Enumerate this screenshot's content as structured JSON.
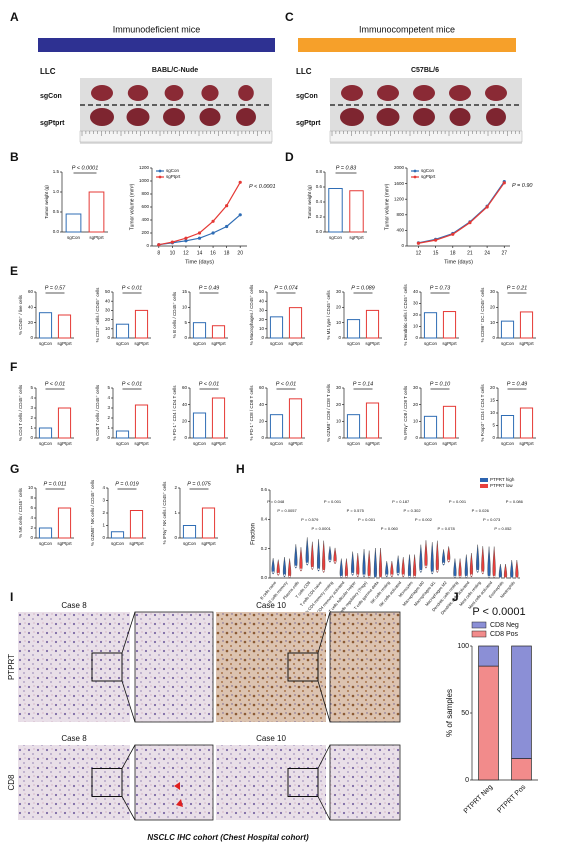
{
  "group_colors": [
    "#2f6db5",
    "#e53935"
  ],
  "figure": {
    "A": {
      "label": "A",
      "header": "Immunodeficient mice",
      "cell_line": "LLC",
      "strain": "BABL/C-Nude",
      "rows": [
        "sgCon",
        "sgPtprt"
      ]
    },
    "C": {
      "label": "C",
      "header": "Immunocompetent mice",
      "cell_line": "LLC",
      "strain": "C57BL/6",
      "rows": [
        "sgCon",
        "sgPtprt"
      ]
    },
    "B": {
      "label": "B",
      "weight": {
        "type": "bar",
        "ylabel": "Tumor weight (g)",
        "annotation": "P < 0.0001",
        "categories": [
          "sgCon",
          "sgPtprt"
        ],
        "values": [
          0.45,
          1.0
        ],
        "ylim": [
          0,
          1.5
        ],
        "yticks": [
          {
            "value": 0,
            "label": "0.0"
          },
          0.5,
          {
            "value": 1,
            "label": "1.0"
          },
          1.5
        ]
      },
      "volume": {
        "type": "line",
        "xlabel": "Time (days)",
        "ylabel": "Tumor volume (mm³)",
        "annotation": "P < 0.0001",
        "x": [
          8,
          10,
          12,
          14,
          16,
          18,
          20
        ],
        "xlim": [
          7,
          21
        ],
        "xticks": [
          8,
          10,
          12,
          14,
          16,
          18,
          20
        ],
        "ylim": [
          0,
          1200
        ],
        "yticks": [
          0,
          200,
          400,
          600,
          800,
          1000,
          1200
        ],
        "series": [
          {
            "name": "sgCon",
            "color": "#2f6db5",
            "values": [
              20,
              50,
              80,
              120,
              200,
              300,
              480
            ]
          },
          {
            "name": "sgPtprt",
            "color": "#e53935",
            "values": [
              20,
              60,
              120,
              200,
              380,
              620,
              980
            ]
          }
        ]
      }
    },
    "D": {
      "label": "D",
      "weight": {
        "type": "bar",
        "ylabel": "Tumor weight (g)",
        "annotation": "P = 0.83",
        "categories": [
          "sgCon",
          "sgPtprt"
        ],
        "values": [
          0.58,
          0.55
        ],
        "ylim": [
          0,
          0.8
        ],
        "yticks": [
          {
            "value": 0,
            "label": "0.0"
          },
          0.2,
          0.4,
          0.6,
          0.8
        ]
      },
      "volume": {
        "type": "line",
        "xlabel": "Time (days)",
        "ylabel": "Tumor volume (mm³)",
        "annotation": "P = 0.90",
        "x": [
          12,
          15,
          18,
          21,
          24,
          27
        ],
        "xlim": [
          10,
          28
        ],
        "xticks": [
          12,
          15,
          18,
          21,
          24,
          27
        ],
        "ylim": [
          0,
          2000
        ],
        "yticks": [
          0,
          400,
          800,
          1200,
          1600,
          2000
        ],
        "series": [
          {
            "name": "sgCon",
            "color": "#2f6db5",
            "values": [
              80,
              170,
              320,
              620,
              1020,
              1650
            ]
          },
          {
            "name": "sgPtprt",
            "color": "#e53935",
            "values": [
              70,
              150,
              300,
              600,
              1000,
              1620
            ]
          }
        ]
      }
    },
    "E": {
      "label": "E",
      "charts": [
        {
          "type": "bar",
          "ylabel": "% CD45⁺ / live cells",
          "annotation": "P = 0.57",
          "categories": [
            "sgCon",
            "sgPtprt"
          ],
          "values": [
            33,
            30
          ],
          "ylim": [
            0,
            60
          ],
          "yticks": [
            0,
            20,
            40,
            60
          ]
        },
        {
          "type": "bar",
          "ylabel": "% CD3⁺ cells / CD45⁺ cells",
          "annotation": "P < 0.01",
          "categories": [
            "sgCon",
            "sgPtprt"
          ],
          "values": [
            15,
            30
          ],
          "ylim": [
            0,
            50
          ],
          "yticks": [
            0,
            10,
            20,
            30,
            40,
            50
          ]
        },
        {
          "type": "bar",
          "ylabel": "% B cells / CD45⁺ cells",
          "annotation": "P = 0.49",
          "categories": [
            "sgCon",
            "sgPtprt"
          ],
          "values": [
            5,
            4
          ],
          "ylim": [
            0,
            15
          ],
          "yticks": [
            0,
            5,
            10,
            15
          ]
        },
        {
          "type": "bar",
          "ylabel": "% Macrophages / CD45⁺ cells",
          "annotation": "P = 0.074",
          "categories": [
            "sgCon",
            "sgPtprt"
          ],
          "values": [
            23,
            33
          ],
          "ylim": [
            0,
            50
          ],
          "yticks": [
            0,
            10,
            20,
            30,
            40,
            50
          ]
        },
        {
          "type": "bar",
          "ylabel": "% M1 type / CD45⁺ cells",
          "annotation": "P = 0.089",
          "categories": [
            "sgCon",
            "sgPtprt"
          ],
          "values": [
            12,
            18
          ],
          "ylim": [
            0,
            30
          ],
          "yticks": [
            0,
            10,
            20,
            30
          ]
        },
        {
          "type": "bar",
          "ylabel": "% Dendritic cells / CD45⁺ cells",
          "annotation": "P = 0.73",
          "categories": [
            "sgCon",
            "sgPtprt"
          ],
          "values": [
            22,
            23
          ],
          "ylim": [
            0,
            40
          ],
          "yticks": [
            0,
            10,
            20,
            30,
            40
          ]
        },
        {
          "type": "bar",
          "ylabel": "% CD86⁺ DC / CD45⁺ cells",
          "annotation": "P = 0.21",
          "categories": [
            "sgCon",
            "sgPtprt"
          ],
          "values": [
            11,
            17
          ],
          "ylim": [
            0,
            30
          ],
          "yticks": [
            0,
            10,
            20,
            30
          ]
        }
      ]
    },
    "F": {
      "label": "F",
      "charts": [
        {
          "type": "bar",
          "ylabel": "% CD4 T cells / CD45⁺ cells",
          "annotation": "P < 0.01",
          "categories": [
            "sgCon",
            "sgPtprt"
          ],
          "values": [
            1,
            3
          ],
          "ylim": [
            0,
            5
          ],
          "yticks": [
            0,
            1,
            2,
            3,
            4,
            5
          ]
        },
        {
          "type": "bar",
          "ylabel": "% CD8 T cells / CD45⁺ cells",
          "annotation": "P < 0.01",
          "categories": [
            "sgCon",
            "sgPtprt"
          ],
          "values": [
            0.7,
            3.3
          ],
          "ylim": [
            0,
            5
          ],
          "yticks": [
            0,
            1,
            2,
            3,
            4,
            5
          ]
        },
        {
          "type": "bar",
          "ylabel": "% PD-1⁺ CD4 / CD4 T cells",
          "annotation": "P < 0.01",
          "categories": [
            "sgCon",
            "sgPtprt"
          ],
          "values": [
            30,
            48
          ],
          "ylim": [
            0,
            60
          ],
          "yticks": [
            0,
            20,
            40,
            60
          ]
        },
        {
          "type": "bar",
          "ylabel": "% PD-1⁺ CD8 / CD8 T cells",
          "annotation": "P < 0.01",
          "categories": [
            "sgCon",
            "sgPtprt"
          ],
          "values": [
            28,
            47
          ],
          "ylim": [
            0,
            60
          ],
          "yticks": [
            0,
            20,
            40,
            60
          ]
        },
        {
          "type": "bar",
          "ylabel": "% GZMB⁺ CD8 / CD8 T cells",
          "annotation": "P = 0.14",
          "categories": [
            "sgCon",
            "sgPtprt"
          ],
          "values": [
            14,
            21
          ],
          "ylim": [
            0,
            30
          ],
          "yticks": [
            0,
            10,
            20,
            30
          ]
        },
        {
          "type": "bar",
          "ylabel": "% IFNγ⁺ CD8 / CD8 T cells",
          "annotation": "P = 0.10",
          "categories": [
            "sgCon",
            "sgPtprt"
          ],
          "values": [
            13,
            19
          ],
          "ylim": [
            0,
            30
          ],
          "yticks": [
            0,
            10,
            20,
            30
          ]
        },
        {
          "type": "bar",
          "ylabel": "% Foxp3⁺ CD4 / CD4 T cells",
          "annotation": "P = 0.49",
          "categories": [
            "sgCon",
            "sgPtprt"
          ],
          "values": [
            9,
            12
          ],
          "ylim": [
            0,
            20
          ],
          "yticks": [
            0,
            5,
            10,
            15,
            20
          ]
        }
      ]
    },
    "G": {
      "label": "G",
      "charts": [
        {
          "type": "bar",
          "ylabel": "% NK cells / CD45⁺ cells",
          "annotation": "P = 0.011",
          "categories": [
            "sgCon",
            "sgPtprt"
          ],
          "values": [
            2,
            6
          ],
          "ylim": [
            0,
            10
          ],
          "yticks": [
            0,
            2,
            4,
            6,
            8,
            10
          ]
        },
        {
          "type": "bar",
          "ylabel": "% GZMB⁺ NK cells / CD45⁺ cells",
          "annotation": "P = 0.019",
          "categories": [
            "sgCon",
            "sgPtprt"
          ],
          "values": [
            0.5,
            2.2
          ],
          "ylim": [
            0,
            4
          ],
          "yticks": [
            0,
            1,
            2,
            3,
            4
          ]
        },
        {
          "type": "bar",
          "ylabel": "% IFNγ⁺ NK cells / CD45⁺ cells",
          "annotation": "P = 0.075",
          "categories": [
            "sgCon",
            "sgPtprt"
          ],
          "values": [
            0.5,
            1.2
          ],
          "ylim": [
            0,
            2
          ],
          "yticks": [
            0,
            1,
            2
          ]
        }
      ]
    },
    "H": {
      "label": "H",
      "chart": {
        "type": "violin",
        "ylabel": "Fraction",
        "categories": [
          "B cells naive",
          "B cells memory",
          "Plasma cells",
          "T cells CD8",
          "T cells CD4 naive",
          "T cells CD4 memory resting",
          "T cells CD4 memory activated",
          "T cells follicular helper",
          "T cells regulatory (Tregs)",
          "T cells gamma delta",
          "NK cells resting",
          "NK cells activated",
          "Monocytes",
          "Macrophages M0",
          "Macrophages M1",
          "Macrophages M2",
          "Dendritic cells resting",
          "Dendritic cells activated",
          "Mast cells resting",
          "Mast cells activated",
          "Eosinophils",
          "Neutrophils"
        ],
        "ylim": [
          0,
          0.6
        ],
        "yticks": [
          {
            "value": 0,
            "label": "0.0"
          },
          0.2,
          0.4,
          0.6
        ],
        "series": [
          {
            "name": "PTPRT high",
            "color": "#2c64b0",
            "values": [
              0.04,
              0.02,
              0.08,
              0.1,
              0.06,
              0.12,
              0.01,
              0.03,
              0.02,
              0.0,
              0.02,
              0.03,
              0.01,
              0.05,
              0.04,
              0.1,
              0.01,
              0.01,
              0.05,
              0.01,
              0.0,
              0.0
            ]
          },
          {
            "name": "PTPRT low",
            "color": "#e8403d",
            "values": [
              0.03,
              0.01,
              0.06,
              0.07,
              0.05,
              0.11,
              0.01,
              0.02,
              0.01,
              0.0,
              0.02,
              0.02,
              0.01,
              0.08,
              0.05,
              0.12,
              0.01,
              0.02,
              0.04,
              0.01,
              0.0,
              0.0
            ]
          }
        ],
        "annotations": [
          {
            "category": 0,
            "text": "P = 0.048"
          },
          {
            "category": 1,
            "text": "P = 0.0057"
          },
          {
            "category": 3,
            "text": "P = 0.579"
          },
          {
            "category": 4,
            "text": "P = 0.0001"
          },
          {
            "category": 5,
            "text": "P = 0.001"
          },
          {
            "category": 7,
            "text": "P = 0.575"
          },
          {
            "category": 8,
            "text": "P = 0.001"
          },
          {
            "category": 10,
            "text": "P = 0.060"
          },
          {
            "category": 11,
            "text": "P = 0.187"
          },
          {
            "category": 12,
            "text": "P = 0.302"
          },
          {
            "category": 13,
            "text": "P = 0.002"
          },
          {
            "category": 15,
            "text": "P = 0.078"
          },
          {
            "category": 16,
            "text": "P = 0.001"
          },
          {
            "category": 18,
            "text": "P = 0.026"
          },
          {
            "category": 19,
            "text": "P = 0.073"
          },
          {
            "category": 20,
            "text": "P = 0.052"
          },
          {
            "category": 21,
            "text": "P = 0.086"
          }
        ]
      }
    },
    "I": {
      "label": "I",
      "columns": [
        "Case  8",
        "Case  10"
      ],
      "rows": [
        "PTPRT",
        "CD8"
      ],
      "caption": "NSCLC IHC cohort (Chest Hospital cohort)"
    },
    "J": {
      "label": "J",
      "chart": {
        "type": "stacked_bar",
        "title": "P < 0.0001",
        "ylabel": "% of samples",
        "categories": [
          "PTPRT Neg",
          "PTPRT Pos"
        ],
        "ylim": [
          0,
          100
        ],
        "yticks": [
          0,
          50,
          100
        ],
        "series": [
          {
            "name": "CD8 Neg",
            "color": "#8b8fd6",
            "values": [
              15,
              84
            ]
          },
          {
            "name": "CD8 Pos",
            "color": "#f28b8b",
            "values": [
              85,
              16
            ]
          }
        ]
      }
    }
  }
}
